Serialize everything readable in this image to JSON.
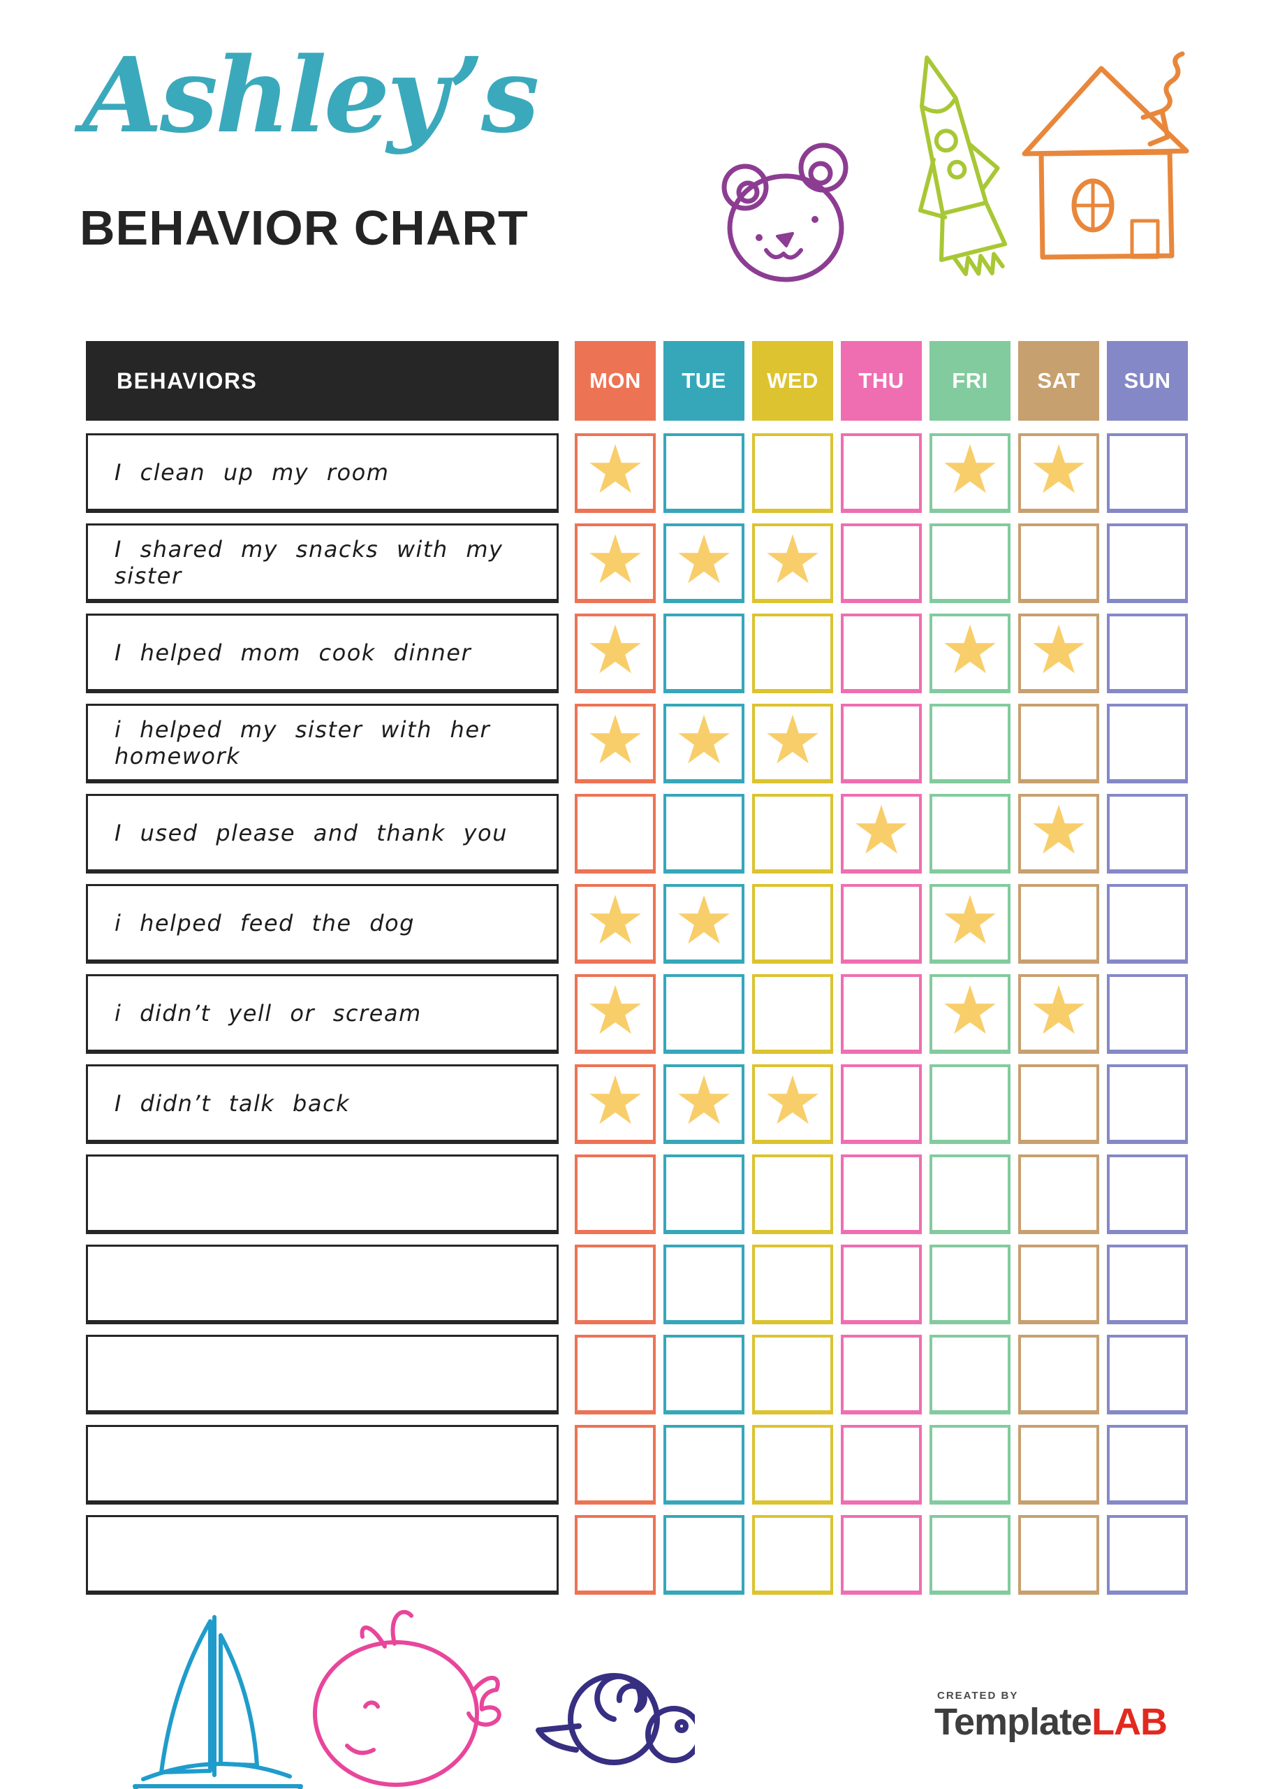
{
  "header": {
    "script_title": "Ashley’s",
    "script_color": "#3BA9BC",
    "main_title": "BEHAVIOR CHART",
    "main_color": "#242424"
  },
  "decorations": {
    "top": [
      "bear-doodle",
      "rocket-doodle",
      "house-doodle"
    ],
    "bottom": [
      "sailboat-doodle",
      "whale-doodle",
      "snail-doodle"
    ],
    "colors": {
      "bear": "#8C3D92",
      "rocket": "#A8C735",
      "house": "#E8873B",
      "boat": "#1F9CCB",
      "whale": "#E8469B",
      "snail": "#372F82"
    }
  },
  "table": {
    "behaviors_header": "BEHAVIORS",
    "header_bg": "#262626",
    "star_glyph": "★",
    "star_color": "#F8CE6B",
    "days": [
      {
        "label": "MON",
        "color": "#ED7355"
      },
      {
        "label": "TUE",
        "color": "#36A7B9"
      },
      {
        "label": "WED",
        "color": "#DCC32F"
      },
      {
        "label": "THU",
        "color": "#EF6EB1"
      },
      {
        "label": "FRI",
        "color": "#82CB9E"
      },
      {
        "label": "SAT",
        "color": "#C7A06F"
      },
      {
        "label": "SUN",
        "color": "#8588C7"
      }
    ],
    "rows": [
      {
        "label": "I clean up my room",
        "stars": [
          1,
          0,
          0,
          0,
          1,
          1,
          0
        ]
      },
      {
        "label": "I shared my snacks with my sister",
        "stars": [
          1,
          1,
          1,
          0,
          0,
          0,
          0
        ]
      },
      {
        "label": "I helped mom cook dinner",
        "stars": [
          1,
          0,
          0,
          0,
          1,
          1,
          0
        ]
      },
      {
        "label": "i helped my sister with her homework",
        "stars": [
          1,
          1,
          1,
          0,
          0,
          0,
          0
        ]
      },
      {
        "label": "I used please and thank you",
        "stars": [
          0,
          0,
          0,
          1,
          0,
          1,
          0
        ]
      },
      {
        "label": "i helped feed the dog",
        "stars": [
          1,
          1,
          0,
          0,
          1,
          0,
          0
        ]
      },
      {
        "label": "i didn’t yell or scream",
        "stars": [
          1,
          0,
          0,
          0,
          1,
          1,
          0
        ]
      },
      {
        "label": "I didn’t talk back",
        "stars": [
          1,
          1,
          1,
          0,
          0,
          0,
          0
        ]
      },
      {
        "label": "",
        "stars": [
          0,
          0,
          0,
          0,
          0,
          0,
          0
        ]
      },
      {
        "label": "",
        "stars": [
          0,
          0,
          0,
          0,
          0,
          0,
          0
        ]
      },
      {
        "label": "",
        "stars": [
          0,
          0,
          0,
          0,
          0,
          0,
          0
        ]
      },
      {
        "label": "",
        "stars": [
          0,
          0,
          0,
          0,
          0,
          0,
          0
        ]
      },
      {
        "label": "",
        "stars": [
          0,
          0,
          0,
          0,
          0,
          0,
          0
        ]
      }
    ]
  },
  "footer": {
    "created_by": "CREATED BY",
    "brand_primary": "Template",
    "brand_accent": "LAB",
    "brand_primary_color": "#3E3E3E",
    "brand_accent_color": "#E2291E"
  }
}
